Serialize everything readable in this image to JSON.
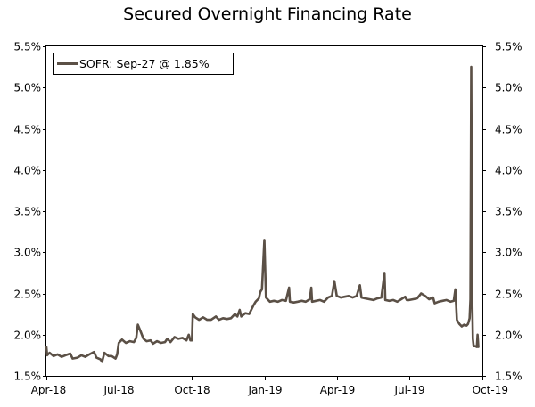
{
  "chart_data": {
    "type": "line",
    "title": "Secured Overnight Financing Rate",
    "xlabel": "",
    "ylabel": "",
    "x_tick_labels": [
      "Apr-18",
      "Jul-18",
      "Oct-18",
      "Jan-19",
      "Apr-19",
      "Jul-19",
      "Oct-19"
    ],
    "x_ticks": [
      "2018-04-01",
      "2018-07-01",
      "2018-10-01",
      "2019-01-01",
      "2019-04-01",
      "2019-07-01",
      "2019-10-01"
    ],
    "xlim": [
      "2018-04-01",
      "2019-10-01"
    ],
    "y_tick_labels": [
      "1.5%",
      "2.0%",
      "2.5%",
      "3.0%",
      "3.5%",
      "4.0%",
      "4.5%",
      "5.0%",
      "5.5%"
    ],
    "y_ticks": [
      1.5,
      2.0,
      2.5,
      3.0,
      3.5,
      4.0,
      4.5,
      5.0,
      5.5
    ],
    "ylim": [
      1.5,
      5.5
    ],
    "y_axis_both_sides": true,
    "grid": false,
    "legend": {
      "position": "top-left",
      "label": "SOFR: Sep-27 @ 1.85%"
    },
    "series": [
      {
        "name": "SOFR",
        "color": "#5b5046",
        "points": [
          [
            "2018-04-01",
            1.85
          ],
          [
            "2018-04-02",
            1.75
          ],
          [
            "2018-04-05",
            1.78
          ],
          [
            "2018-04-10",
            1.74
          ],
          [
            "2018-04-15",
            1.76
          ],
          [
            "2018-04-20",
            1.73
          ],
          [
            "2018-04-25",
            1.75
          ],
          [
            "2018-05-01",
            1.77
          ],
          [
            "2018-05-04",
            1.71
          ],
          [
            "2018-05-10",
            1.72
          ],
          [
            "2018-05-15",
            1.75
          ],
          [
            "2018-05-20",
            1.73
          ],
          [
            "2018-05-25",
            1.76
          ],
          [
            "2018-05-31",
            1.79
          ],
          [
            "2018-06-03",
            1.72
          ],
          [
            "2018-06-08",
            1.7
          ],
          [
            "2018-06-10",
            1.67
          ],
          [
            "2018-06-13",
            1.78
          ],
          [
            "2018-06-18",
            1.74
          ],
          [
            "2018-06-22",
            1.74
          ],
          [
            "2018-06-27",
            1.71
          ],
          [
            "2018-06-29",
            1.76
          ],
          [
            "2018-07-01",
            1.9
          ],
          [
            "2018-07-05",
            1.94
          ],
          [
            "2018-07-10",
            1.9
          ],
          [
            "2018-07-15",
            1.92
          ],
          [
            "2018-07-20",
            1.91
          ],
          [
            "2018-07-23",
            1.96
          ],
          [
            "2018-07-25",
            2.12
          ],
          [
            "2018-07-28",
            2.05
          ],
          [
            "2018-08-01",
            1.95
          ],
          [
            "2018-08-05",
            1.92
          ],
          [
            "2018-08-10",
            1.93
          ],
          [
            "2018-08-13",
            1.89
          ],
          [
            "2018-08-18",
            1.92
          ],
          [
            "2018-08-23",
            1.9
          ],
          [
            "2018-08-28",
            1.91
          ],
          [
            "2018-08-31",
            1.95
          ],
          [
            "2018-09-04",
            1.91
          ],
          [
            "2018-09-09",
            1.97
          ],
          [
            "2018-09-14",
            1.95
          ],
          [
            "2018-09-19",
            1.96
          ],
          [
            "2018-09-24",
            1.93
          ],
          [
            "2018-09-27",
            2.0
          ],
          [
            "2018-09-29",
            1.93
          ],
          [
            "2018-10-01",
            1.93
          ],
          [
            "2018-10-02",
            2.25
          ],
          [
            "2018-10-05",
            2.21
          ],
          [
            "2018-10-10",
            2.18
          ],
          [
            "2018-10-15",
            2.21
          ],
          [
            "2018-10-20",
            2.18
          ],
          [
            "2018-10-25",
            2.18
          ],
          [
            "2018-10-31",
            2.22
          ],
          [
            "2018-11-04",
            2.18
          ],
          [
            "2018-11-09",
            2.2
          ],
          [
            "2018-11-14",
            2.19
          ],
          [
            "2018-11-19",
            2.2
          ],
          [
            "2018-11-24",
            2.25
          ],
          [
            "2018-11-27",
            2.22
          ],
          [
            "2018-11-30",
            2.3
          ],
          [
            "2018-12-02",
            2.22
          ],
          [
            "2018-12-07",
            2.26
          ],
          [
            "2018-12-12",
            2.25
          ],
          [
            "2018-12-17",
            2.35
          ],
          [
            "2018-12-20",
            2.4
          ],
          [
            "2018-12-24",
            2.44
          ],
          [
            "2018-12-26",
            2.52
          ],
          [
            "2018-12-28",
            2.55
          ],
          [
            "2018-12-31",
            3.15
          ],
          [
            "2019-01-02",
            2.45
          ],
          [
            "2019-01-07",
            2.4
          ],
          [
            "2019-01-12",
            2.41
          ],
          [
            "2019-01-17",
            2.4
          ],
          [
            "2019-01-22",
            2.42
          ],
          [
            "2019-01-27",
            2.41
          ],
          [
            "2019-01-31",
            2.57
          ],
          [
            "2019-02-01",
            2.4
          ],
          [
            "2019-02-06",
            2.39
          ],
          [
            "2019-02-11",
            2.4
          ],
          [
            "2019-02-16",
            2.41
          ],
          [
            "2019-02-21",
            2.4
          ],
          [
            "2019-02-26",
            2.43
          ],
          [
            "2019-02-28",
            2.57
          ],
          [
            "2019-03-01",
            2.4
          ],
          [
            "2019-03-06",
            2.41
          ],
          [
            "2019-03-11",
            2.42
          ],
          [
            "2019-03-16",
            2.4
          ],
          [
            "2019-03-21",
            2.45
          ],
          [
            "2019-03-26",
            2.47
          ],
          [
            "2019-03-29",
            2.65
          ],
          [
            "2019-04-01",
            2.47
          ],
          [
            "2019-04-06",
            2.45
          ],
          [
            "2019-04-11",
            2.46
          ],
          [
            "2019-04-16",
            2.47
          ],
          [
            "2019-04-21",
            2.45
          ],
          [
            "2019-04-26",
            2.47
          ],
          [
            "2019-04-30",
            2.6
          ],
          [
            "2019-05-02",
            2.45
          ],
          [
            "2019-05-07",
            2.44
          ],
          [
            "2019-05-12",
            2.43
          ],
          [
            "2019-05-17",
            2.42
          ],
          [
            "2019-05-22",
            2.44
          ],
          [
            "2019-05-27",
            2.45
          ],
          [
            "2019-05-31",
            2.75
          ],
          [
            "2019-06-01",
            2.42
          ],
          [
            "2019-06-06",
            2.41
          ],
          [
            "2019-06-11",
            2.42
          ],
          [
            "2019-06-16",
            2.4
          ],
          [
            "2019-06-21",
            2.43
          ],
          [
            "2019-06-26",
            2.46
          ],
          [
            "2019-06-28",
            2.42
          ],
          [
            "2019-07-01",
            2.42
          ],
          [
            "2019-07-06",
            2.43
          ],
          [
            "2019-07-11",
            2.44
          ],
          [
            "2019-07-16",
            2.5
          ],
          [
            "2019-07-21",
            2.47
          ],
          [
            "2019-07-26",
            2.43
          ],
          [
            "2019-07-31",
            2.45
          ],
          [
            "2019-08-02",
            2.38
          ],
          [
            "2019-08-07",
            2.4
          ],
          [
            "2019-08-12",
            2.41
          ],
          [
            "2019-08-17",
            2.42
          ],
          [
            "2019-08-22",
            2.4
          ],
          [
            "2019-08-26",
            2.41
          ],
          [
            "2019-08-28",
            2.55
          ],
          [
            "2019-08-30",
            2.18
          ],
          [
            "2019-09-02",
            2.13
          ],
          [
            "2019-09-05",
            2.1
          ],
          [
            "2019-09-08",
            2.12
          ],
          [
            "2019-09-11",
            2.11
          ],
          [
            "2019-09-13",
            2.13
          ],
          [
            "2019-09-15",
            2.2
          ],
          [
            "2019-09-16",
            2.43
          ],
          [
            "2019-09-17",
            5.25
          ],
          [
            "2019-09-18",
            2.55
          ],
          [
            "2019-09-19",
            1.95
          ],
          [
            "2019-09-20",
            1.86
          ],
          [
            "2019-09-22",
            1.86
          ],
          [
            "2019-09-24",
            1.85
          ],
          [
            "2019-09-25",
            2.0
          ],
          [
            "2019-09-26",
            1.85
          ]
        ]
      }
    ]
  }
}
